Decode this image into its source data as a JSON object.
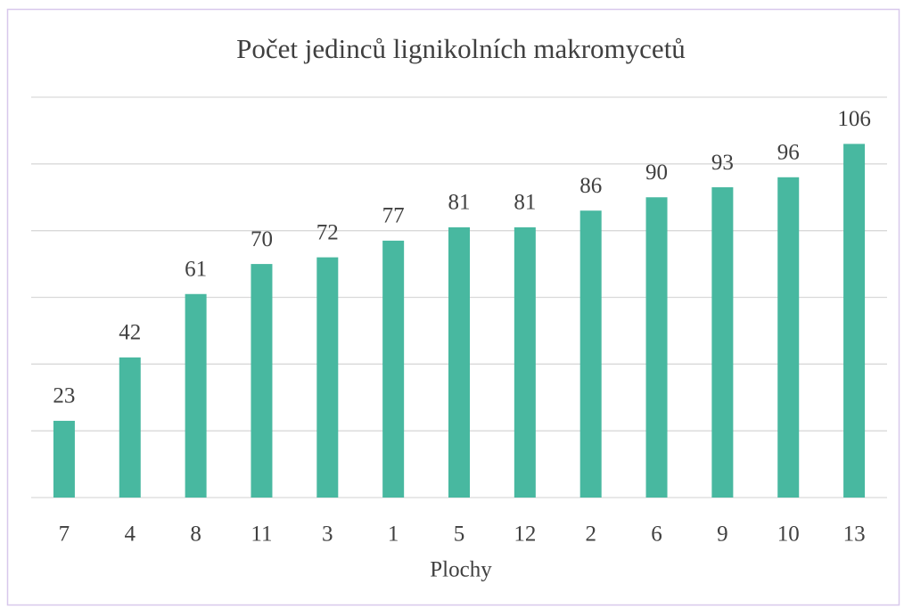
{
  "chart_data": {
    "type": "bar",
    "title": "Počet jedinců lignikolních makromycetů",
    "x_label": "Plochy",
    "categories": [
      "7",
      "4",
      "8",
      "11",
      "3",
      "1",
      "5",
      "12",
      "2",
      "6",
      "9",
      "10",
      "13"
    ],
    "values": [
      23,
      42,
      61,
      70,
      72,
      77,
      81,
      81,
      86,
      90,
      93,
      96,
      106
    ],
    "color": "#48b8a0",
    "ylim": [
      0,
      120
    ],
    "yticks": [
      0,
      20,
      40,
      60,
      80,
      100,
      120
    ],
    "grid": true
  }
}
